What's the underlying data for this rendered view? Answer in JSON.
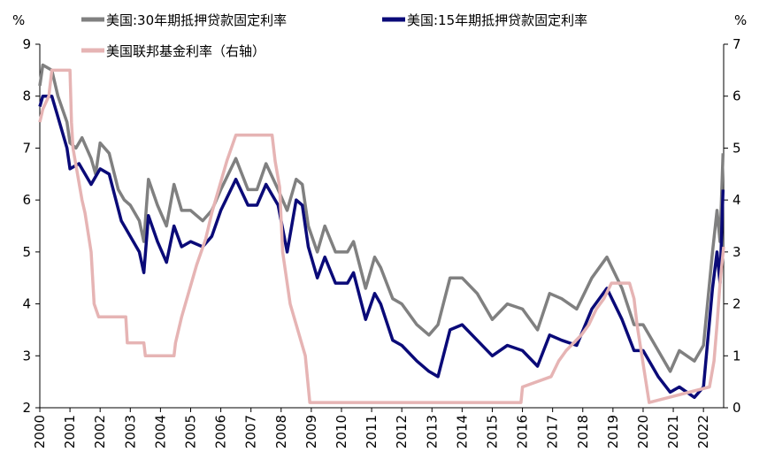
{
  "chart_data": {
    "type": "line",
    "y_label": "%",
    "y2_label": "%",
    "xlim": [
      2000,
      2022.67
    ],
    "xticks": [
      2000,
      2001,
      2002,
      2003,
      2004,
      2005,
      2006,
      2007,
      2008,
      2009,
      2010,
      2011,
      2012,
      2013,
      2014,
      2015,
      2016,
      2017,
      2018,
      2019,
      2020,
      2021,
      2022
    ],
    "ylim": [
      2,
      9
    ],
    "yticks": [
      2,
      3,
      4,
      5,
      6,
      7,
      8,
      9
    ],
    "y2lim": [
      0,
      7
    ],
    "y2ticks": [
      0,
      1,
      2,
      3,
      4,
      5,
      6,
      7
    ],
    "series": [
      {
        "name": "美国:30年期抵押贷款固定利率",
        "color": "#808080",
        "x": [
          2000.0,
          2000.1,
          2000.4,
          2000.6,
          2000.9,
          2001.0,
          2001.2,
          2001.4,
          2001.7,
          2001.85,
          2002.0,
          2002.3,
          2002.6,
          2002.8,
          2003.0,
          2003.3,
          2003.45,
          2003.6,
          2003.9,
          2004.2,
          2004.45,
          2004.7,
          2005.0,
          2005.4,
          2005.7,
          2006.0,
          2006.5,
          2006.9,
          2007.2,
          2007.5,
          2007.9,
          2008.2,
          2008.5,
          2008.7,
          2008.9,
          2009.2,
          2009.45,
          2009.8,
          2010.2,
          2010.4,
          2010.8,
          2011.1,
          2011.3,
          2011.7,
          2012.0,
          2012.5,
          2012.9,
          2013.2,
          2013.6,
          2014.0,
          2014.5,
          2015.0,
          2015.5,
          2016.0,
          2016.5,
          2016.9,
          2017.3,
          2017.8,
          2018.3,
          2018.8,
          2019.3,
          2019.7,
          2020.0,
          2020.5,
          2020.9,
          2021.2,
          2021.7,
          2022.0,
          2022.3,
          2022.45,
          2022.55,
          2022.65
        ],
        "values": [
          8.2,
          8.6,
          8.5,
          8.0,
          7.5,
          7.1,
          7.0,
          7.2,
          6.8,
          6.5,
          7.1,
          6.9,
          6.2,
          6.0,
          5.9,
          5.6,
          5.2,
          6.4,
          5.9,
          5.5,
          6.3,
          5.8,
          5.8,
          5.6,
          5.8,
          6.2,
          6.8,
          6.2,
          6.2,
          6.7,
          6.2,
          5.8,
          6.4,
          6.3,
          5.5,
          5.0,
          5.5,
          5.0,
          5.0,
          5.2,
          4.3,
          4.9,
          4.7,
          4.1,
          4.0,
          3.6,
          3.4,
          3.6,
          4.5,
          4.5,
          4.2,
          3.7,
          4.0,
          3.9,
          3.5,
          4.2,
          4.1,
          3.9,
          4.5,
          4.9,
          4.3,
          3.6,
          3.6,
          3.1,
          2.7,
          3.1,
          2.9,
          3.2,
          5.0,
          5.8,
          5.2,
          6.9
        ]
      },
      {
        "name": "美国:15年期抵押贷款固定利率",
        "color": "#0a0a78",
        "x": [
          2000.0,
          2000.1,
          2000.4,
          2000.6,
          2000.9,
          2001.0,
          2001.3,
          2001.7,
          2002.0,
          2002.3,
          2002.7,
          2003.0,
          2003.3,
          2003.45,
          2003.6,
          2003.9,
          2004.2,
          2004.45,
          2004.7,
          2005.0,
          2005.4,
          2005.7,
          2006.0,
          2006.5,
          2006.9,
          2007.2,
          2007.5,
          2007.9,
          2008.2,
          2008.5,
          2008.7,
          2008.9,
          2009.2,
          2009.45,
          2009.8,
          2010.2,
          2010.4,
          2010.8,
          2011.1,
          2011.3,
          2011.7,
          2012.0,
          2012.5,
          2012.9,
          2013.2,
          2013.6,
          2014.0,
          2014.5,
          2015.0,
          2015.5,
          2016.0,
          2016.5,
          2016.9,
          2017.3,
          2017.8,
          2018.3,
          2018.8,
          2019.3,
          2019.7,
          2020.0,
          2020.5,
          2020.9,
          2021.2,
          2021.7,
          2022.0,
          2022.3,
          2022.45,
          2022.55,
          2022.65
        ],
        "values": [
          7.8,
          8.0,
          8.0,
          7.6,
          7.0,
          6.6,
          6.7,
          6.3,
          6.6,
          6.5,
          5.6,
          5.3,
          5.0,
          4.6,
          5.7,
          5.2,
          4.8,
          5.5,
          5.1,
          5.2,
          5.1,
          5.3,
          5.8,
          6.4,
          5.9,
          5.9,
          6.3,
          5.9,
          5.0,
          6.0,
          5.9,
          5.1,
          4.5,
          4.9,
          4.4,
          4.4,
          4.6,
          3.7,
          4.2,
          4.0,
          3.3,
          3.2,
          2.9,
          2.7,
          2.6,
          3.5,
          3.6,
          3.3,
          3.0,
          3.2,
          3.1,
          2.8,
          3.4,
          3.3,
          3.2,
          3.9,
          4.3,
          3.7,
          3.1,
          3.1,
          2.6,
          2.3,
          2.4,
          2.2,
          2.4,
          4.3,
          5.0,
          4.4,
          6.2
        ]
      },
      {
        "name": "美国联邦基金利率（右轴）",
        "color": "#e6b4b4",
        "axis": "y2",
        "x": [
          2000.0,
          2000.1,
          2000.3,
          2000.4,
          2001.0,
          2001.05,
          2001.1,
          2001.25,
          2001.4,
          2001.5,
          2001.7,
          2001.8,
          2001.95,
          2002.85,
          2002.9,
          2003.45,
          2003.5,
          2004.45,
          2004.5,
          2004.7,
          2004.95,
          2005.2,
          2005.5,
          2005.7,
          2005.95,
          2006.2,
          2006.5,
          2007.7,
          2007.8,
          2007.95,
          2008.05,
          2008.3,
          2008.8,
          2008.95,
          2015.95,
          2016.0,
          2016.95,
          2017.2,
          2017.45,
          2017.95,
          2018.2,
          2018.45,
          2018.7,
          2018.95,
          2019.55,
          2019.7,
          2019.8,
          2020.2,
          2022.2,
          2022.35,
          2022.45,
          2022.55,
          2022.67
        ],
        "values": [
          5.5,
          5.75,
          6.0,
          6.5,
          6.5,
          5.5,
          5.0,
          4.5,
          4.0,
          3.75,
          3.0,
          2.0,
          1.75,
          1.75,
          1.25,
          1.25,
          1.0,
          1.0,
          1.25,
          1.75,
          2.25,
          2.75,
          3.25,
          3.75,
          4.25,
          4.75,
          5.25,
          5.25,
          4.75,
          4.25,
          3.0,
          2.0,
          1.0,
          0.1,
          0.1,
          0.4,
          0.6,
          0.9,
          1.1,
          1.4,
          1.6,
          1.9,
          2.1,
          2.4,
          2.4,
          2.1,
          1.6,
          0.1,
          0.4,
          0.9,
          1.6,
          2.4,
          3.1
        ]
      }
    ]
  }
}
